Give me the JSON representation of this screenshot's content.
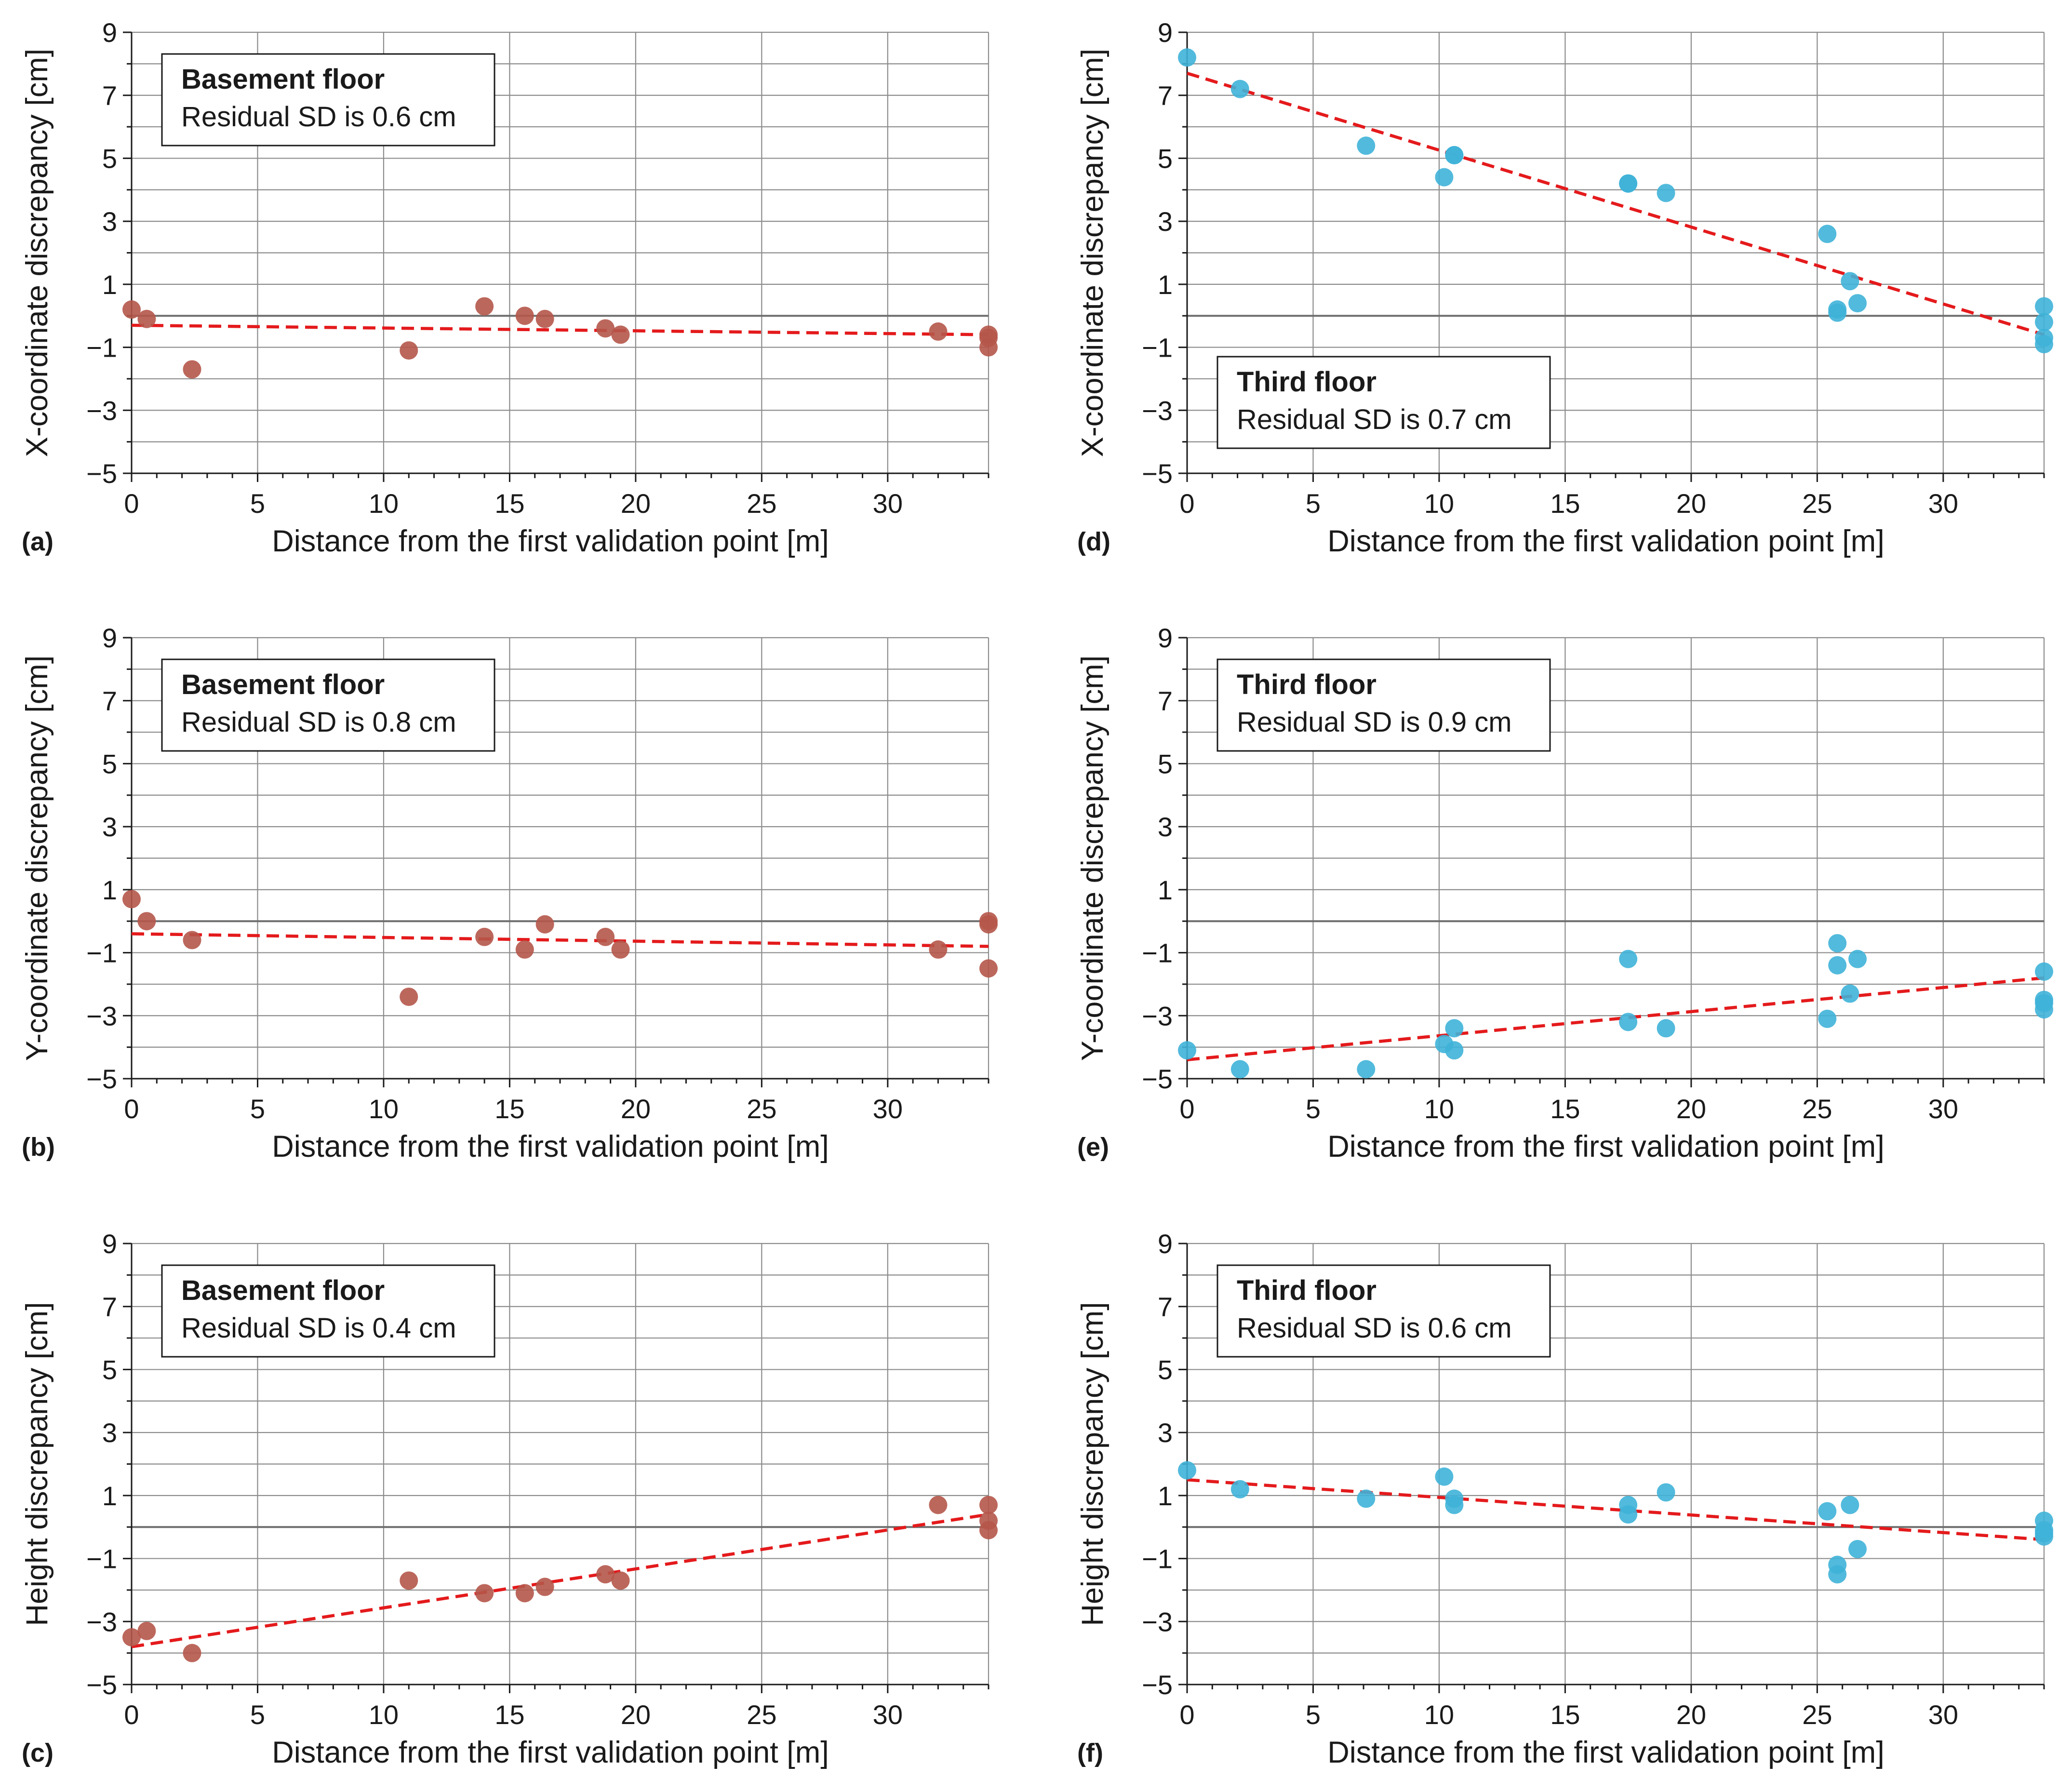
{
  "colors": {
    "basement_point": "#b5574a",
    "third_point": "#3fb3d8",
    "fit_line": "#e41a1c",
    "grid": "#8c8c8c",
    "zero_line": "#6e6e6e"
  },
  "chart_data": [
    {
      "panel": "(a)",
      "type": "scatter",
      "title": "Basement floor",
      "subtitle": "Residual SD is 0.6 cm",
      "xlabel": "Distance from the first validation point [m]",
      "ylabel": "X-coordinate discrepancy [cm]",
      "xlim": [
        0,
        34
      ],
      "ylim": [
        -5,
        9
      ],
      "xticks": [
        0,
        5,
        10,
        15,
        20,
        25,
        30
      ],
      "yticks": [
        -5,
        -3,
        -1,
        1,
        3,
        5,
        7,
        9
      ],
      "legend_position": "top-left",
      "color": "#b5574a",
      "x": [
        0,
        0.6,
        2.4,
        11,
        14,
        15.6,
        16.4,
        18.8,
        19.4,
        32,
        34,
        34,
        34
      ],
      "y": [
        0.2,
        -0.1,
        -1.7,
        -1.1,
        0.3,
        0,
        -0.1,
        -0.4,
        -0.6,
        -0.5,
        -0.6,
        -0.7,
        -1.0
      ],
      "fit": {
        "x": [
          0,
          34
        ],
        "y": [
          -0.3,
          -0.6
        ]
      }
    },
    {
      "panel": "(b)",
      "type": "scatter",
      "title": "Basement floor",
      "subtitle": "Residual SD is 0.8 cm",
      "xlabel": "Distance from the first validation point [m]",
      "ylabel": "Y-coordinate discrepancy [cm]",
      "xlim": [
        0,
        34
      ],
      "ylim": [
        -5,
        9
      ],
      "xticks": [
        0,
        5,
        10,
        15,
        20,
        25,
        30
      ],
      "yticks": [
        -5,
        -3,
        -1,
        1,
        3,
        5,
        7,
        9
      ],
      "legend_position": "top-left",
      "color": "#b5574a",
      "x": [
        0,
        0.6,
        2.4,
        11,
        14,
        15.6,
        16.4,
        18.8,
        19.4,
        32,
        34,
        34,
        34
      ],
      "y": [
        0.7,
        0,
        -0.6,
        -2.4,
        -0.5,
        -0.9,
        -0.1,
        -0.5,
        -0.9,
        -0.9,
        0,
        -0.1,
        -1.5
      ],
      "fit": {
        "x": [
          0,
          34
        ],
        "y": [
          -0.4,
          -0.8
        ]
      }
    },
    {
      "panel": "(c)",
      "type": "scatter",
      "title": "Basement floor",
      "subtitle": "Residual SD is 0.4 cm",
      "xlabel": "Distance from the first validation point [m]",
      "ylabel": "Height discrepancy [cm]",
      "xlim": [
        0,
        34
      ],
      "ylim": [
        -5,
        9
      ],
      "xticks": [
        0,
        5,
        10,
        15,
        20,
        25,
        30
      ],
      "yticks": [
        -5,
        -3,
        -1,
        1,
        3,
        5,
        7,
        9
      ],
      "legend_position": "top-left",
      "color": "#b5574a",
      "x": [
        0,
        0.6,
        2.4,
        11,
        14,
        15.6,
        16.4,
        18.8,
        19.4,
        32,
        34,
        34,
        34
      ],
      "y": [
        -3.5,
        -3.3,
        -4.0,
        -1.7,
        -2.1,
        -2.1,
        -1.9,
        -1.5,
        -1.7,
        0.7,
        0.7,
        0.2,
        -0.1
      ],
      "fit": {
        "x": [
          0,
          34
        ],
        "y": [
          -3.8,
          0.4
        ]
      }
    },
    {
      "panel": "(d)",
      "type": "scatter",
      "title": "Third floor",
      "subtitle": "Residual SD is 0.7 cm",
      "xlabel": "Distance from the first validation point [m]",
      "ylabel": "X-coordinate discrepancy [cm]",
      "xlim": [
        0,
        34
      ],
      "ylim": [
        -5,
        9
      ],
      "xticks": [
        0,
        5,
        10,
        15,
        20,
        25,
        30
      ],
      "yticks": [
        -5,
        -3,
        -1,
        1,
        3,
        5,
        7,
        9
      ],
      "legend_position": "bottom-left",
      "color": "#3fb3d8",
      "x": [
        0,
        2.1,
        7.1,
        10.2,
        10.6,
        10.6,
        17.5,
        17.5,
        19,
        25.4,
        25.8,
        25.8,
        26.3,
        26.6,
        34,
        34,
        34,
        34
      ],
      "y": [
        8.2,
        7.2,
        5.4,
        4.4,
        5.1,
        5.1,
        4.2,
        4.2,
        3.9,
        2.6,
        0.2,
        0.1,
        1.1,
        0.4,
        0.3,
        -0.2,
        -0.7,
        -0.9
      ],
      "fit": {
        "x": [
          0,
          34
        ],
        "y": [
          7.7,
          -0.6
        ]
      }
    },
    {
      "panel": "(e)",
      "type": "scatter",
      "title": "Third floor",
      "subtitle": "Residual SD is 0.9 cm",
      "xlabel": "Distance from the first validation point [m]",
      "ylabel": "Y-coordinate discrepancy [cm]",
      "xlim": [
        0,
        34
      ],
      "ylim": [
        -5,
        9
      ],
      "xticks": [
        0,
        5,
        10,
        15,
        20,
        25,
        30
      ],
      "yticks": [
        -5,
        -3,
        -1,
        1,
        3,
        5,
        7,
        9
      ],
      "legend_position": "top-left",
      "color": "#3fb3d8",
      "x": [
        0,
        2.1,
        7.1,
        10.2,
        10.6,
        10.6,
        17.5,
        17.5,
        19,
        25.4,
        25.8,
        25.8,
        26.3,
        26.6,
        34,
        34,
        34,
        34
      ],
      "y": [
        -4.1,
        -4.7,
        -4.7,
        -3.9,
        -3.4,
        -4.1,
        -1.2,
        -3.2,
        -3.4,
        -3.1,
        -0.7,
        -1.4,
        -2.3,
        -1.2,
        -1.6,
        -2.5,
        -2.6,
        -2.8
      ],
      "fit": {
        "x": [
          0,
          34
        ],
        "y": [
          -4.4,
          -1.8
        ]
      }
    },
    {
      "panel": "(f)",
      "type": "scatter",
      "title": "Third floor",
      "subtitle": "Residual SD is 0.6 cm",
      "xlabel": "Distance from the first validation point [m]",
      "ylabel": "Height discrepancy [cm]",
      "xlim": [
        0,
        34
      ],
      "ylim": [
        -5,
        9
      ],
      "xticks": [
        0,
        5,
        10,
        15,
        20,
        25,
        30
      ],
      "yticks": [
        -5,
        -3,
        -1,
        1,
        3,
        5,
        7,
        9
      ],
      "legend_position": "top-left",
      "color": "#3fb3d8",
      "x": [
        0,
        2.1,
        7.1,
        10.2,
        10.6,
        10.6,
        17.5,
        17.5,
        19,
        25.4,
        25.8,
        25.8,
        26.3,
        26.6,
        34,
        34,
        34,
        34
      ],
      "y": [
        1.8,
        1.2,
        0.9,
        1.6,
        0.9,
        0.7,
        0.7,
        0.4,
        1.1,
        0.5,
        -1.2,
        -1.5,
        0.7,
        -0.7,
        0.2,
        -0.1,
        -0.2,
        -0.3
      ],
      "fit": {
        "x": [
          0,
          34
        ],
        "y": [
          1.5,
          -0.4
        ]
      }
    }
  ]
}
